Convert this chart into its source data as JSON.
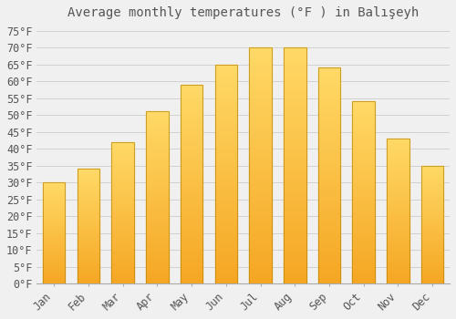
{
  "title": "Average monthly temperatures (°F ) in Balışeyh",
  "months": [
    "Jan",
    "Feb",
    "Mar",
    "Apr",
    "May",
    "Jun",
    "Jul",
    "Aug",
    "Sep",
    "Oct",
    "Nov",
    "Dec"
  ],
  "values": [
    30,
    34,
    42,
    51,
    59,
    65,
    70,
    70,
    64,
    54,
    43,
    35
  ],
  "bar_color_bottom": "#F5A623",
  "bar_color_top": "#FFD966",
  "bar_edge_color": "#B8860B",
  "background_color": "#F0F0F0",
  "grid_color": "#CCCCCC",
  "text_color": "#555555",
  "ylim": [
    0,
    77
  ],
  "yticks": [
    0,
    5,
    10,
    15,
    20,
    25,
    30,
    35,
    40,
    45,
    50,
    55,
    60,
    65,
    70,
    75
  ],
  "title_fontsize": 10,
  "tick_fontsize": 8.5,
  "bar_width": 0.65
}
